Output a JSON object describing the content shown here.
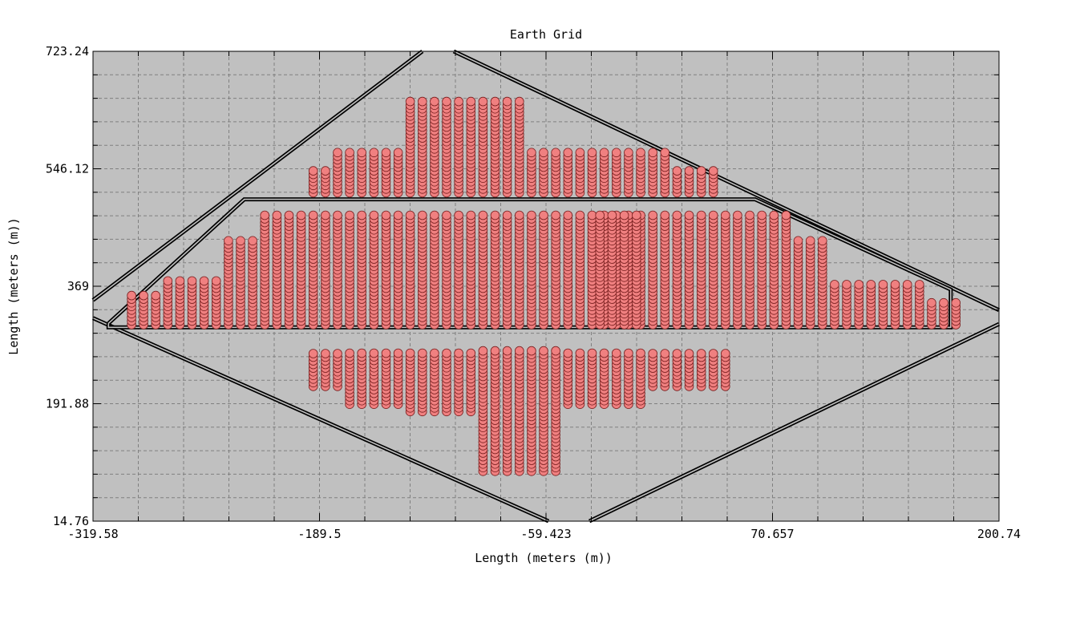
{
  "chart_data": {
    "type": "scatter",
    "title": "Earth Grid",
    "xlabel": "Length (meters (m))",
    "ylabel": "Length (meters (m))",
    "xlim": [
      -319.58,
      200.74
    ],
    "ylim": [
      14.76,
      723.24
    ],
    "xticks": [
      "-319.58",
      "-189.5",
      "-59.423",
      "70.657",
      "200.74"
    ],
    "yticks": [
      "14.76",
      "191.88",
      "369",
      "546.12",
      "723.24"
    ],
    "grid": true,
    "colors": {
      "plot_bg": "#c0c0c0",
      "marker": "#f08080",
      "marker_edge": "#7a2020",
      "line": "#000000"
    },
    "outlines": [
      {
        "points": [
          [
            -319.58,
            348
          ],
          [
            -130.4,
            723.24
          ]
        ]
      },
      {
        "points": [
          [
            -112.4,
            723.24
          ],
          [
            200.74,
            333
          ]
        ]
      },
      {
        "points": [
          [
            -319.58,
            321
          ],
          [
            -58.0,
            14.76
          ]
        ]
      },
      {
        "points": [
          [
            -34.5,
            14.76
          ],
          [
            200.74,
            312
          ]
        ]
      },
      {
        "points": [
          [
            -310.7,
            313
          ],
          [
            -232.7,
            500
          ],
          [
            60.6,
            500
          ],
          [
            173.0,
            364
          ],
          [
            173.0,
            307
          ],
          [
            -310.7,
            307
          ],
          [
            -310.7,
            313
          ]
        ]
      }
    ],
    "series": [
      {
        "x": [
          -297.45,
          -290.53,
          -283.58
        ],
        "ymin": 311,
        "ymax": 356
      },
      {
        "x": [
          -276.6,
          -269.65,
          -262.7,
          -255.75,
          -248.8
        ],
        "ymin": 311,
        "ymax": 382
      },
      {
        "x": [
          -241.8,
          -234.85,
          -227.9
        ],
        "ymin": 311,
        "ymax": 442
      },
      {
        "x": [
          -220.95,
          -213.95,
          -207.0,
          -200.05,
          -193.1,
          -186.1,
          -179.15,
          -172.2,
          -165.25,
          -158.25,
          -151.3,
          -144.35,
          -137.4,
          -130.4,
          -123.45,
          -116.5,
          -109.55,
          -102.55,
          -95.6,
          -88.65,
          -81.7,
          -74.7,
          -67.75,
          -60.8,
          -53.85,
          -46.85,
          -39.9,
          -32.95,
          -26.0,
          -19.0,
          -12.05,
          -5.1,
          1.9,
          8.85,
          15.8,
          22.75,
          29.75,
          36.7,
          43.65,
          50.6,
          57.6
        ],
        "ymin": 311,
        "ymax": 477
      },
      {
        "x": [
          -28.5,
          -21.5,
          -14.5,
          -7.5
        ],
        "ymin": 311,
        "ymax": 477
      },
      {
        "x": [
          64.55,
          71.5,
          78.45
        ],
        "ymin": 311,
        "ymax": 477
      },
      {
        "x": [
          85.4,
          92.4,
          99.35
        ],
        "ymin": 311,
        "ymax": 442
      },
      {
        "x": [
          106.3,
          113.25,
          120.25,
          127.2,
          134.15,
          141.1,
          148.1,
          155.05
        ],
        "ymin": 311,
        "ymax": 373
      },
      {
        "x": [
          162.0,
          168.95,
          175.95
        ],
        "ymin": 311,
        "ymax": 346
      },
      {
        "x": [
          -193.1,
          -186.1
        ],
        "ymin": 510,
        "ymax": 545
      },
      {
        "x": [
          -179.15,
          -172.2,
          -165.25,
          -158.25,
          -151.3,
          -144.35
        ],
        "ymin": 510,
        "ymax": 573
      },
      {
        "x": [
          -137.4,
          -130.4,
          -123.45,
          -116.5,
          -109.55,
          -102.55,
          -95.6,
          -88.65,
          -81.7,
          -74.7
        ],
        "ymin": 510,
        "ymax": 650
      },
      {
        "x": [
          -67.75,
          -60.8,
          -53.85,
          -46.85,
          -39.9,
          -32.95,
          -26.0,
          -19.0,
          -12.05,
          -5.1,
          1.9,
          8.85
        ],
        "ymin": 510,
        "ymax": 573
      },
      {
        "x": [
          15.8,
          22.75,
          29.75,
          36.7
        ],
        "ymin": 510,
        "ymax": 545
      },
      {
        "x": [
          -193.1,
          -186.1,
          -179.15
        ],
        "ymin": 218,
        "ymax": 272
      },
      {
        "x": [
          -172.2,
          -165.25,
          -158.25,
          -151.3,
          -144.35
        ],
        "ymin": 191,
        "ymax": 272
      },
      {
        "x": [
          -137.4,
          -130.4,
          -123.45,
          -116.5,
          -109.55,
          -102.55
        ],
        "ymin": 180,
        "ymax": 272
      },
      {
        "x": [
          -95.6,
          -88.65,
          -81.7,
          -74.7,
          -67.75,
          -60.8,
          -53.85
        ],
        "ymin": 90,
        "ymax": 272
      },
      {
        "x": [
          -46.85,
          -39.9,
          -32.95,
          -26.0,
          -19.0,
          -12.05,
          -5.1
        ],
        "ymin": 191,
        "ymax": 272
      },
      {
        "x": [
          1.9,
          8.85,
          15.8,
          22.75,
          29.75,
          36.7,
          43.65
        ],
        "ymin": 218,
        "ymax": 272
      }
    ]
  }
}
